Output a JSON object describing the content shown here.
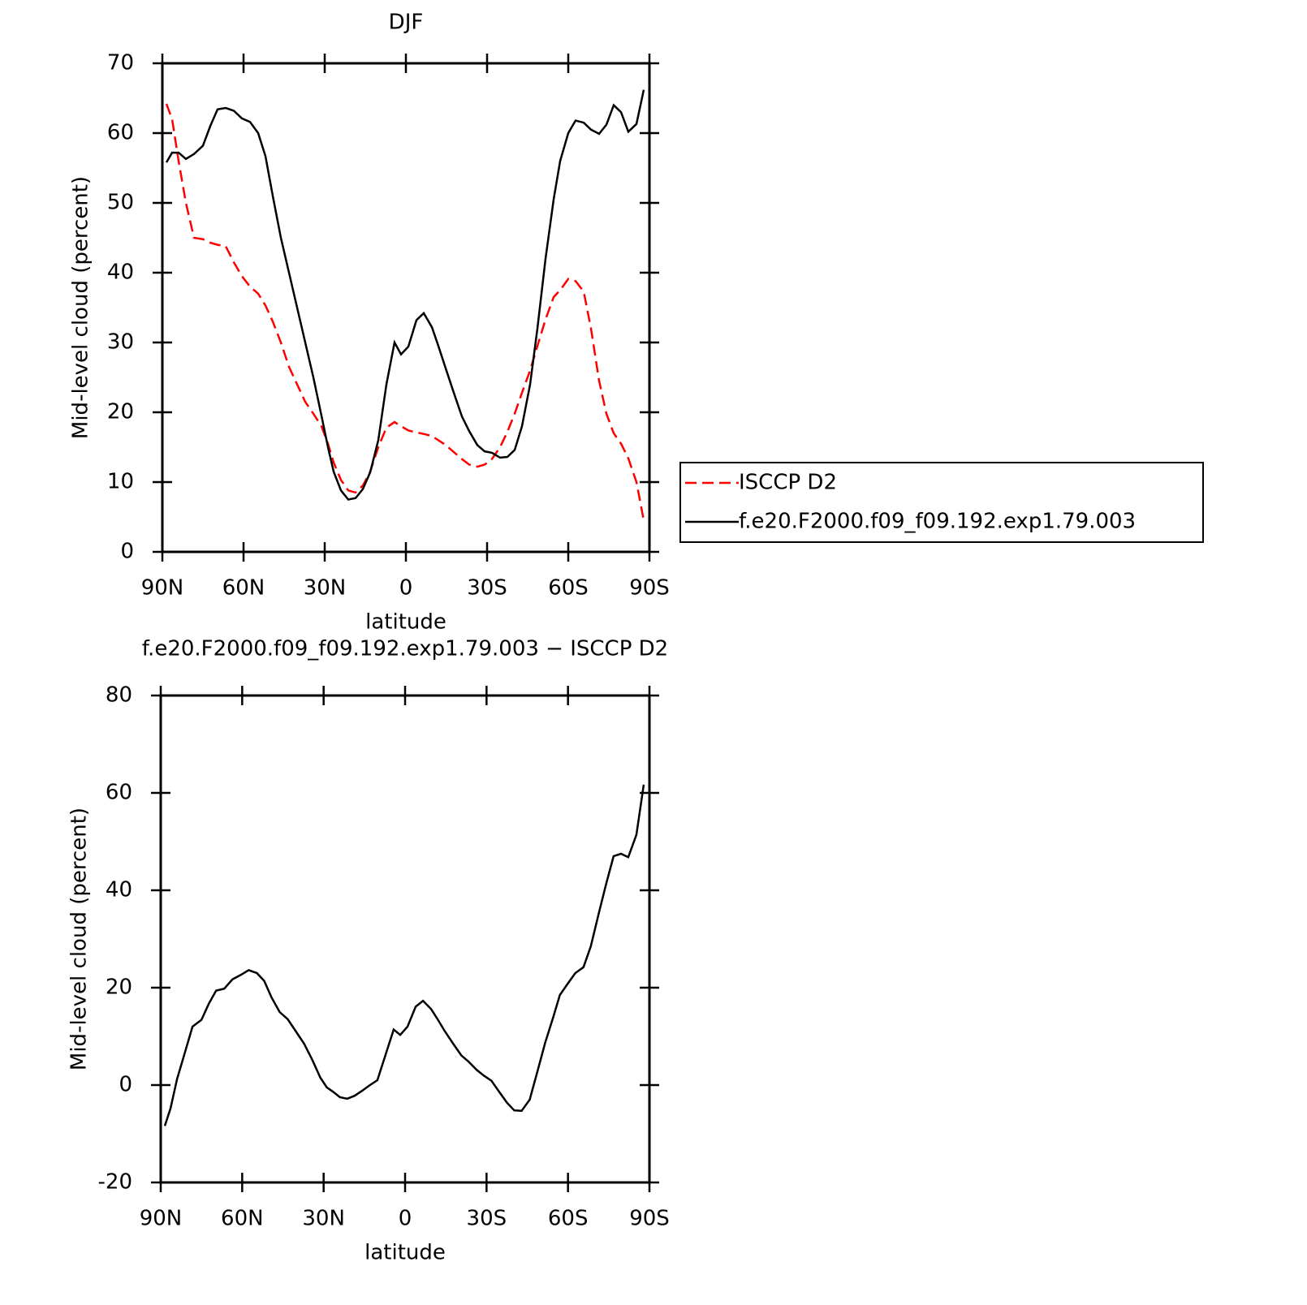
{
  "chart_data": [
    {
      "type": "line",
      "title": "DJF",
      "x_label": "latitude",
      "y_label": "Mid-level cloud (percent)",
      "x": [
        88.5,
        86.4,
        84,
        81.3,
        78.3,
        75,
        72.3,
        69.6,
        66.6,
        63.6,
        60.6,
        57.6,
        54.6,
        51.9,
        49.2,
        46.2,
        43.2,
        40.2,
        37.2,
        34.2,
        31.2,
        28.8,
        26.7,
        24,
        21.3,
        18.6,
        15.9,
        13.2,
        10.2,
        7.2,
        4.2,
        1.8,
        -0.9,
        -3.9,
        -6.6,
        -9.6,
        -12,
        -14.7,
        -17.7,
        -20.7,
        -23.4,
        -26.4,
        -29.1,
        -31.8,
        -34.8,
        -37.5,
        -40.2,
        -42.9,
        -45.9,
        -48.6,
        -51.6,
        -54.6,
        -57,
        -60,
        -62.7,
        -65.7,
        -68.4,
        -71.4,
        -74.1,
        -76.8,
        -79.5,
        -82.2,
        -85.2,
        -87.9
      ],
      "series": [
        {
          "name": "ISCCP D2",
          "color": "#ff0000",
          "line_style": "dashed",
          "values": [
            64.2,
            62,
            56,
            50,
            45,
            44.8,
            44.3,
            44,
            43.8,
            41.5,
            39.5,
            38,
            37,
            35.3,
            33,
            30,
            26.5,
            24,
            21.5,
            19.8,
            18,
            15.5,
            12.8,
            10.3,
            8.8,
            8.5,
            9.5,
            11.5,
            15,
            17.8,
            18.6,
            18,
            17.4,
            17.1,
            16.9,
            16.6,
            16,
            15.3,
            14.3,
            13.3,
            12.5,
            12.2,
            12.5,
            13.3,
            15,
            17.2,
            19.8,
            22.8,
            26,
            29.5,
            33.3,
            36.5,
            37.5,
            39.1,
            38.8,
            37.3,
            32,
            24.5,
            19.8,
            17,
            15.5,
            13.4,
            10,
            4.5
          ]
        },
        {
          "name": "f.e20.F2000.f09_f09.192.exp1.79.003",
          "color": "#000000",
          "line_style": "solid",
          "values": [
            55.8,
            57.2,
            57.2,
            56.3,
            57,
            58.2,
            61,
            63.4,
            63.6,
            63.2,
            62.1,
            61.6,
            60,
            56.7,
            51,
            45,
            40,
            35,
            30,
            25,
            19.5,
            15,
            11.5,
            8.8,
            7.5,
            7.7,
            9,
            11.4,
            16,
            24,
            30,
            28.3,
            29.4,
            33.2,
            34.2,
            32.2,
            29.5,
            26.3,
            22.8,
            19.4,
            17.3,
            15.3,
            14.4,
            14.2,
            13.5,
            13.6,
            14.6,
            18,
            24,
            32,
            42,
            50.5,
            56,
            60,
            61.8,
            61.5,
            60.5,
            59.9,
            61.2,
            64,
            63,
            60.2,
            61.3,
            66.2
          ]
        }
      ],
      "xlim": [
        90,
        -90
      ],
      "ylim": [
        0,
        70
      ],
      "xticks": [
        {
          "value": 90,
          "label": "90N"
        },
        {
          "value": 60,
          "label": "60N"
        },
        {
          "value": 30,
          "label": "30N"
        },
        0,
        {
          "value": -30,
          "label": "30S"
        },
        {
          "value": -60,
          "label": "60S"
        },
        {
          "value": -90,
          "label": "90S"
        }
      ],
      "yticks": [
        0,
        10,
        20,
        30,
        40,
        50,
        60,
        70
      ],
      "legend": "right"
    },
    {
      "type": "line",
      "title": "f.e20.F2000.f09_f09.192.exp1.79.003 − ISCCP D2",
      "x_label": "latitude",
      "y_label": "Mid-level cloud (percent)",
      "x": [
        88.5,
        86.4,
        84,
        81.3,
        78.3,
        75,
        72.3,
        69.6,
        66.6,
        63.6,
        60.6,
        57.6,
        54.6,
        51.9,
        49.2,
        46.2,
        43.2,
        40.2,
        37.2,
        34.2,
        31.2,
        28.8,
        26.7,
        24,
        21.3,
        18.6,
        15.9,
        13.2,
        10.2,
        7.2,
        4.2,
        1.8,
        -0.9,
        -3.9,
        -6.6,
        -9.6,
        -12,
        -14.7,
        -17.7,
        -20.7,
        -23.4,
        -26.4,
        -29.1,
        -31.8,
        -34.8,
        -37.5,
        -40.2,
        -42.9,
        -45.9,
        -48.6,
        -51.6,
        -54.6,
        -57,
        -60,
        -62.7,
        -65.7,
        -68.4,
        -71.4,
        -74.1,
        -76.8,
        -79.5,
        -82.2,
        -85.2,
        -87.9
      ],
      "series": [
        {
          "color": "#000000",
          "line_style": "solid",
          "values": [
            -8.4,
            -4.8,
            1.2,
            6.3,
            12,
            13.4,
            16.7,
            19.4,
            19.8,
            21.7,
            22.6,
            23.6,
            23,
            21.4,
            18,
            15,
            13.5,
            11,
            8.5,
            5.2,
            1.5,
            -0.5,
            -1.3,
            -2.5,
            -2.8,
            -2.2,
            -1.2,
            -0.1,
            1,
            6.2,
            11.4,
            10.3,
            12,
            16.1,
            17.3,
            15.6,
            13.5,
            11,
            8.5,
            6.1,
            4.8,
            3.1,
            1.9,
            0.9,
            -1.5,
            -3.6,
            -5.2,
            -5.3,
            -3,
            2.5,
            8.7,
            14,
            18.5,
            20.9,
            23,
            24.2,
            28.5,
            35.4,
            41.4,
            47,
            47.5,
            46.8,
            51.4,
            61.7
          ]
        }
      ],
      "xlim": [
        90,
        -90
      ],
      "ylim": [
        -20,
        80
      ],
      "xticks": [
        {
          "value": 90,
          "label": "90N"
        },
        {
          "value": 60,
          "label": "60N"
        },
        {
          "value": 30,
          "label": "30N"
        },
        0,
        {
          "value": -30,
          "label": "30S"
        },
        {
          "value": -60,
          "label": "60S"
        },
        {
          "value": -90,
          "label": "90S"
        }
      ],
      "yticks": [
        -20,
        0,
        20,
        40,
        60,
        80
      ]
    }
  ]
}
